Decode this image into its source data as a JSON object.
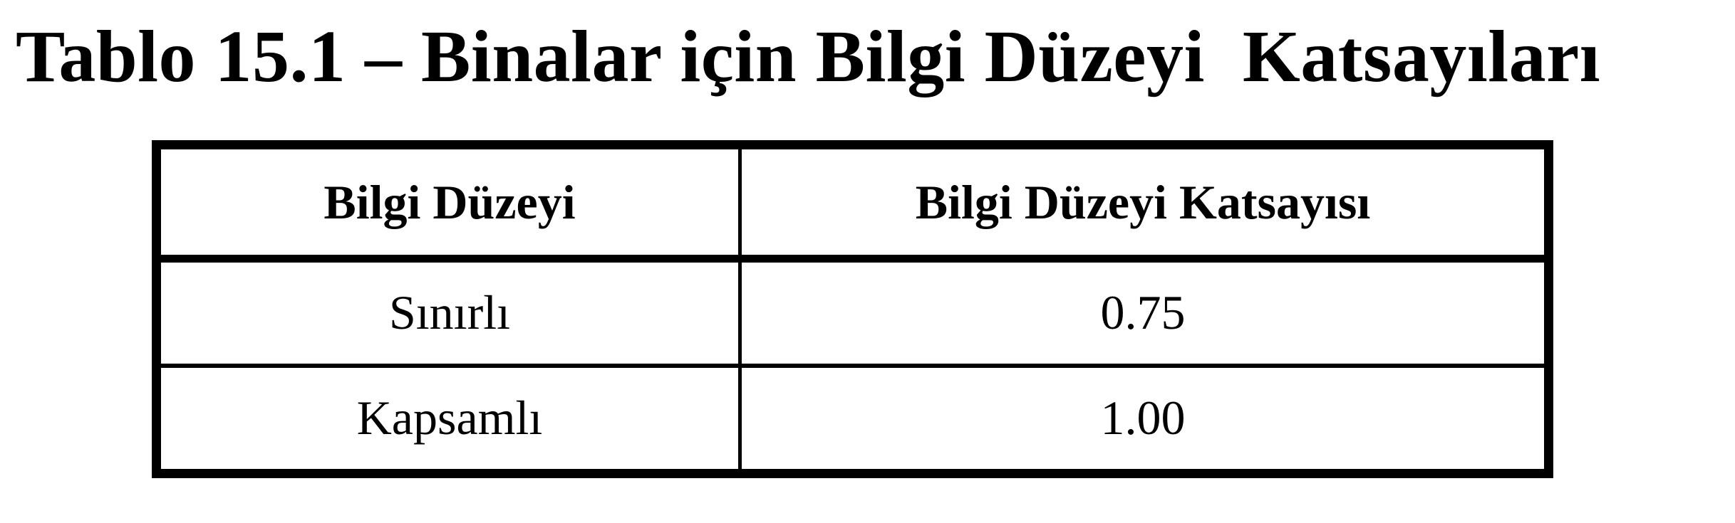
{
  "title": "Tablo 15.1 – Binalar için Bilgi Düzeyi  Katsayıları",
  "table": {
    "headers": [
      "Bilgi Düzeyi",
      "Bilgi Düzeyi Katsayısı"
    ],
    "rows": [
      [
        "Sınırlı",
        "0.75"
      ],
      [
        "Kapsamlı",
        "1.00"
      ]
    ]
  }
}
